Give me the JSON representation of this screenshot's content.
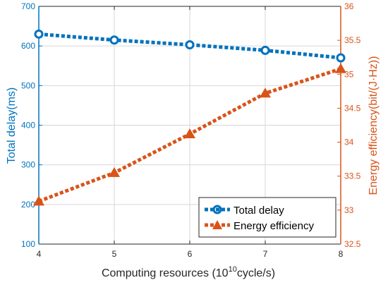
{
  "chart_data": {
    "type": "line",
    "x": [
      4,
      5,
      6,
      7,
      8
    ],
    "xlabel_main": "Computing resources (10",
    "xlabel_sup": "10",
    "xlabel_tail": "cycle/s)",
    "xlim": [
      4,
      8
    ],
    "xticks": [
      "4",
      "5",
      "6",
      "7",
      "8"
    ],
    "ylabel_left": "Total delay(ms)",
    "ylim_left": [
      100,
      700
    ],
    "yticks_left": [
      "100",
      "200",
      "300",
      "400",
      "500",
      "600",
      "700"
    ],
    "ylabel_right": "Energy efficiency(bit/(J·Hz))",
    "ylim_right": [
      32.5,
      36
    ],
    "yticks_right": [
      "32.5",
      "33",
      "33.5",
      "34",
      "34.5",
      "35",
      "35.5",
      "36"
    ],
    "grid": true,
    "legend_position": "bottom-right",
    "series": [
      {
        "name": "Total delay",
        "axis": "left",
        "marker": "circle",
        "color": "#0072BD",
        "values": [
          630,
          615,
          603,
          589,
          570
        ]
      },
      {
        "name": "Energy efficiency",
        "axis": "right",
        "marker": "triangle",
        "color": "#D95319",
        "values": [
          33.13,
          33.55,
          34.12,
          34.72,
          35.08
        ]
      }
    ]
  }
}
